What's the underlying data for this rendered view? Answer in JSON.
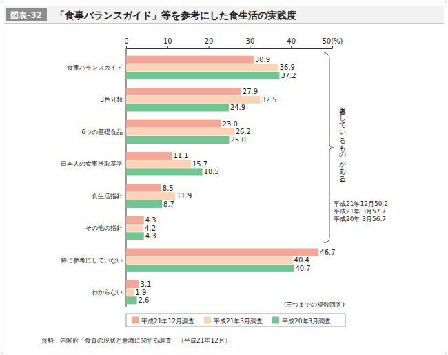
{
  "chart_data": {
    "type": "bar",
    "orientation": "horizontal",
    "badge": "図表-32",
    "title": "「食事バランスガイド」等を参考にした食生活の実践度",
    "categories": [
      "食事バランスガイド",
      "3色分類",
      "6つの基礎食品",
      "日本人の食事摂取基準",
      "食生活指針",
      "その他の指針",
      "特に参考にしていない",
      "わからない"
    ],
    "series": [
      {
        "name": "平成21年12月調査",
        "color": "#f4a797",
        "values": [
          30.9,
          27.9,
          23.0,
          11.1,
          8.5,
          4.3,
          46.7,
          3.1
        ],
        "value_labels": [
          "30.9",
          "27.9",
          "23.0",
          "11.1",
          "8.5",
          "4.3",
          "46.7",
          "3.1"
        ]
      },
      {
        "name": "平成21年3月調査",
        "color": "#fcd3b6",
        "values": [
          36.9,
          32.5,
          26.2,
          15.7,
          11.9,
          4.2,
          40.4,
          1.9
        ],
        "value_labels": [
          "36.9",
          "32.5",
          "26.2",
          "15.7",
          "11.9",
          "4.2",
          "40.4",
          "1.9"
        ]
      },
      {
        "name": "平成20年3月調査",
        "color": "#72c592",
        "values": [
          37.2,
          24.9,
          25.0,
          18.5,
          8.7,
          4.3,
          40.7,
          2.6
        ],
        "value_labels": [
          "37.2",
          "24.9",
          "25.0",
          "18.5",
          "8.7",
          "4.3",
          "40.7",
          "2.6"
        ]
      }
    ],
    "xlim": [
      0,
      50
    ],
    "xticks": [
      0,
      10,
      20,
      30,
      40,
      {
        "value": 50,
        "label": "50(%)"
      }
    ],
    "grid": false,
    "data_labels": true,
    "legend": "bottom",
    "annotations": [
      "参考にしているものがある↓",
      "平成21年12月50.2",
      "平成21年 3月57.7",
      "平成20年 3月56.7"
    ],
    "note": "(三つまでの複数回答)",
    "source": "資料：内閣府「食育の現状と意識に関する調査」（平成21年12月）"
  }
}
